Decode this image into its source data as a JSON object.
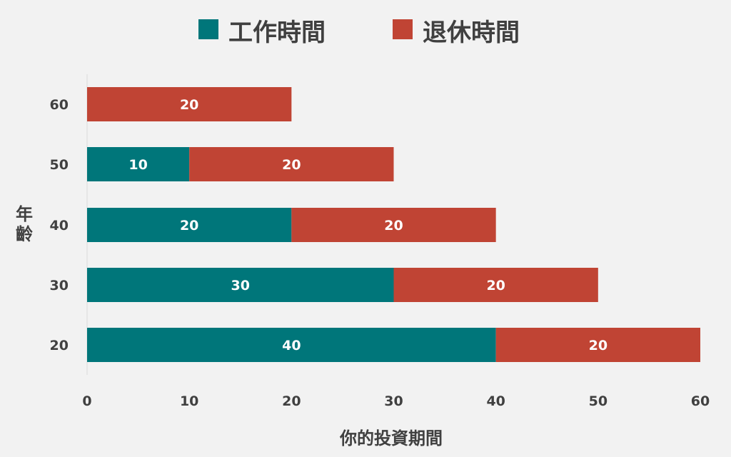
{
  "chart_data": {
    "type": "bar",
    "orientation": "horizontal",
    "stacked": true,
    "categories": [
      "20",
      "30",
      "40",
      "50",
      "60"
    ],
    "series": [
      {
        "name": "工作時間",
        "color": "#00767a",
        "values": [
          40,
          30,
          20,
          10,
          0
        ]
      },
      {
        "name": "退休時間",
        "color": "#c04434",
        "values": [
          20,
          20,
          20,
          20,
          20
        ]
      }
    ],
    "x_ticks": [
      "0",
      "10",
      "20",
      "30",
      "40",
      "50",
      "60"
    ],
    "xlim": [
      0,
      60
    ],
    "xlabel": "你的投資期間",
    "ylabel": "年齡",
    "legend_position": "top-center",
    "grid": false,
    "data_labels": true
  }
}
